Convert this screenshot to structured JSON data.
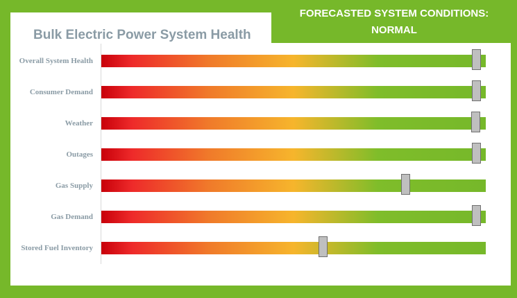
{
  "banner": {
    "line1": "FORECASTED SYSTEM CONDITIONS:",
    "line2": "NORMAL"
  },
  "title": "Bulk Electric Power System Health",
  "colors": {
    "background_green": "#76b82a",
    "panel": "#ffffff",
    "label_gray": "#8a9ba5",
    "gradient": [
      "#c8000a",
      "#ee2a2a",
      "#f07a2a",
      "#f6b52c",
      "#7fbd2a",
      "#76b82a"
    ],
    "handle_fill": "#bfbfbf",
    "handle_border": "#6f6f6f"
  },
  "indicators": [
    {
      "label": "Overall System Health",
      "level": 0.975
    },
    {
      "label": "Consumer Demand",
      "level": 0.975
    },
    {
      "label": "Weather",
      "level": 0.973
    },
    {
      "label": "Outages",
      "level": 0.975
    },
    {
      "label": "Gas Supply",
      "level": 0.79
    },
    {
      "label": "Gas Demand",
      "level": 0.975
    },
    {
      "label": "Stored Fuel Inventory",
      "level": 0.575
    }
  ]
}
